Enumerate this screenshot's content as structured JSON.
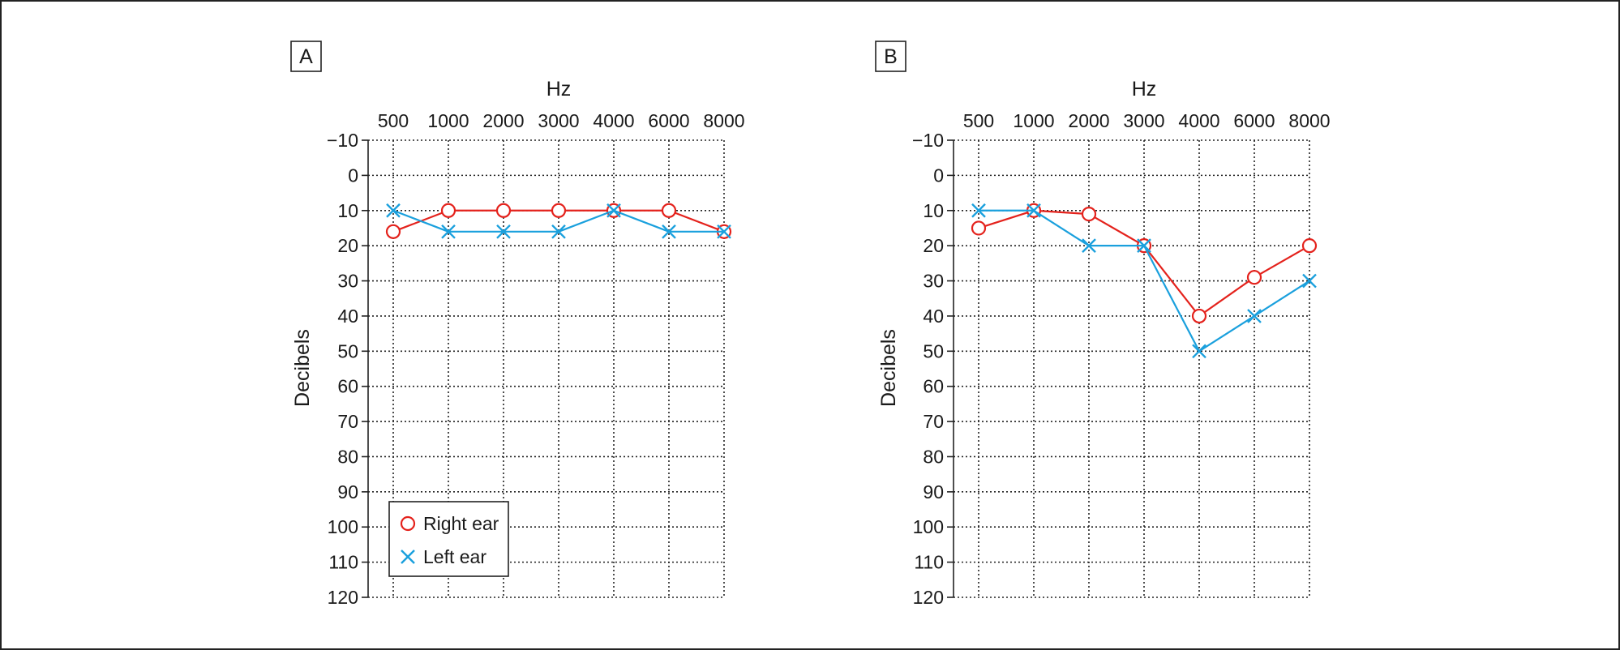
{
  "chart_data": [
    {
      "type": "line",
      "panel_label": "A",
      "xlabel": "Hz",
      "ylabel": "Decibels",
      "categories": [
        "500",
        "1000",
        "2000",
        "3000",
        "4000",
        "6000",
        "8000"
      ],
      "yticks": [
        "−10",
        "0",
        "10",
        "20",
        "30",
        "40",
        "50",
        "60",
        "70",
        "80",
        "90",
        "100",
        "110",
        "120"
      ],
      "ylim": [
        -10,
        120
      ],
      "y_inverted": true,
      "grid": true,
      "legend_position": "bottom-left",
      "series": [
        {
          "name": "Right ear",
          "marker": "circle",
          "color": "#e4221c",
          "values": [
            16,
            10,
            10,
            10,
            10,
            10,
            16
          ]
        },
        {
          "name": "Left ear",
          "marker": "x",
          "color": "#1aa0dd",
          "values": [
            10,
            16,
            16,
            16,
            10,
            16,
            16
          ]
        }
      ]
    },
    {
      "type": "line",
      "panel_label": "B",
      "xlabel": "Hz",
      "ylabel": "Decibels",
      "categories": [
        "500",
        "1000",
        "2000",
        "3000",
        "4000",
        "6000",
        "8000"
      ],
      "yticks": [
        "−10",
        "0",
        "10",
        "20",
        "30",
        "40",
        "50",
        "60",
        "70",
        "80",
        "90",
        "100",
        "110",
        "120"
      ],
      "ylim": [
        -10,
        120
      ],
      "y_inverted": true,
      "grid": true,
      "series": [
        {
          "name": "Right ear",
          "marker": "circle",
          "color": "#e4221c",
          "values": [
            15,
            10,
            11,
            20,
            40,
            29,
            20
          ]
        },
        {
          "name": "Left ear",
          "marker": "x",
          "color": "#1aa0dd",
          "values": [
            10,
            10,
            20,
            20,
            50,
            40,
            30
          ]
        }
      ]
    }
  ],
  "legend": {
    "items": [
      {
        "label": "Right ear",
        "marker": "circle",
        "color": "#e4221c"
      },
      {
        "label": "Left ear",
        "marker": "x",
        "color": "#1aa0dd"
      }
    ]
  }
}
